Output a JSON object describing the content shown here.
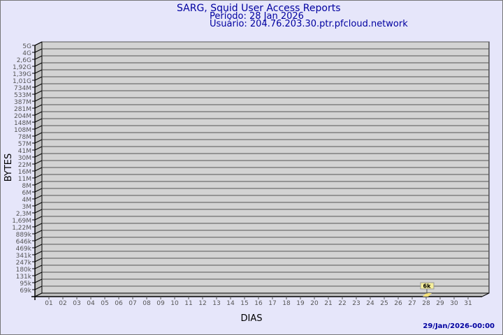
{
  "chart_data": {
    "type": "bar",
    "title": "SARG, Squid User Access Reports",
    "subtitle_lines": [
      "Período: 28 Jan 2026",
      "Usuário: 204.76.203.30.ptr.pfcloud.network"
    ],
    "xlabel": "DIAS",
    "ylabel": "BYTES",
    "y_tick_labels": [
      "5G",
      "4G",
      "2,6G",
      "1,92G",
      "1,39G",
      "1,01G",
      "734M",
      "533M",
      "387M",
      "281M",
      "204M",
      "148M",
      "108M",
      "78M",
      "57M",
      "41M",
      "30M",
      "22M",
      "16M",
      "11M",
      "8M",
      "6M",
      "4M",
      "3M",
      "2,3M",
      "1,69M",
      "1,22M",
      "889k",
      "646k",
      "469k",
      "341k",
      "247k",
      "180k",
      "131k",
      "95k",
      "69k"
    ],
    "categories": [
      "01",
      "02",
      "03",
      "04",
      "05",
      "06",
      "07",
      "08",
      "09",
      "10",
      "11",
      "12",
      "13",
      "14",
      "15",
      "16",
      "17",
      "18",
      "19",
      "20",
      "21",
      "22",
      "23",
      "24",
      "25",
      "26",
      "27",
      "28",
      "29",
      "30",
      "31"
    ],
    "values": [
      null,
      null,
      null,
      null,
      null,
      null,
      null,
      null,
      null,
      null,
      null,
      null,
      null,
      null,
      null,
      null,
      null,
      null,
      null,
      null,
      null,
      null,
      null,
      null,
      null,
      null,
      null,
      6000,
      null,
      null,
      null
    ],
    "data_labels": {
      "28": "6k"
    },
    "y_scale": "log",
    "grid": true,
    "bar_color": "#f5e27a",
    "title_color": "#0000a0"
  },
  "footer": {
    "timestamp": "29/Jan/2026-00:00"
  }
}
